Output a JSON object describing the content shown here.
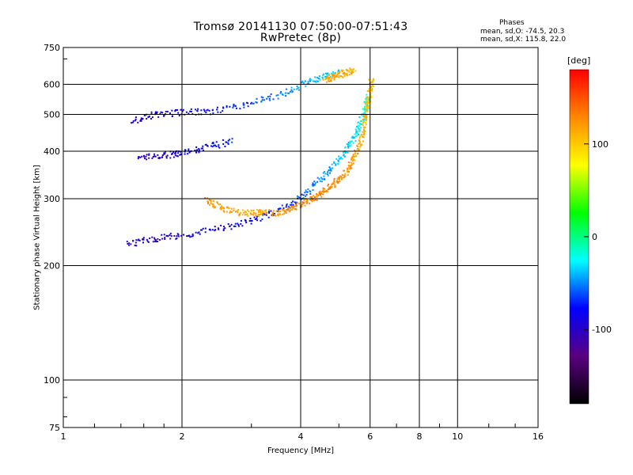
{
  "chart_data": {
    "type": "scatter",
    "title": "Tromsø 20141130 07:50:00-07:51:43",
    "subtitle": "RwPretec (8p)",
    "xlabel": "Frequency [MHz]",
    "ylabel": "Stationary phase Virtual Height [km]",
    "x_scale": "log",
    "y_scale": "log",
    "xlim": [
      1,
      16
    ],
    "ylim": [
      75,
      750
    ],
    "x_ticks": [
      1,
      2,
      4,
      6,
      8,
      10,
      16
    ],
    "y_ticks": [
      75,
      100,
      200,
      300,
      400,
      500,
      600,
      750
    ],
    "grid": true,
    "phase_box": {
      "title": "Phases",
      "line_o": "mean, sd,O: -74.5, 20.3",
      "line_x": "mean, sd,X: 115.8, 22.0"
    },
    "colorbar": {
      "label": "[deg]",
      "range": [
        -180,
        180
      ],
      "ticks": [
        100,
        0,
        -100
      ],
      "colors": [
        "#000000",
        "#5a0080",
        "#0000ff",
        "#00ffff",
        "#00ff00",
        "#ffff00",
        "#ff8800",
        "#ff0000"
      ]
    },
    "series": [
      {
        "name": "O",
        "traces": [
          {
            "x": [
              1.45,
              1.7,
              2.0,
              2.5,
              3.0,
              3.5,
              4.0,
              4.4,
              4.8,
              5.2,
              5.5,
              5.7,
              5.85,
              5.95
            ],
            "y": [
              228,
              235,
              240,
              250,
              262,
              278,
              300,
              330,
              360,
              400,
              440,
              480,
              520,
              560
            ],
            "phase": [
              -100,
              -100,
              -90,
              -85,
              -80,
              -72,
              -60,
              -50,
              -45,
              -35,
              -30,
              -25,
              -20,
              -15
            ]
          },
          {
            "x": [
              1.5,
              1.7,
              2.0,
              2.4,
              3.0,
              3.6,
              4.2,
              4.6,
              5.0
            ],
            "y": [
              480,
              500,
              505,
              510,
              535,
              565,
              610,
              630,
              645
            ],
            "phase": [
              -95,
              -90,
              -85,
              -75,
              -65,
              -50,
              -40,
              -35,
              -30
            ]
          },
          {
            "x": [
              1.55,
              1.8,
              2.0,
              2.3,
              2.7
            ],
            "y": [
              385,
              390,
              395,
              410,
              425
            ],
            "phase": [
              -100,
              -95,
              -90,
              -80,
              -70
            ]
          }
        ]
      },
      {
        "name": "X",
        "traces": [
          {
            "x": [
              3.4,
              3.7,
              4.0,
              4.3,
              4.6,
              4.9,
              5.2,
              5.45,
              5.65,
              5.8,
              5.9,
              6.0,
              6.05
            ],
            "y": [
              272,
              280,
              290,
              300,
              315,
              330,
              350,
              380,
              420,
              470,
              520,
              570,
              620
            ],
            "phase": [
              120,
              125,
              130,
              130,
              130,
              128,
              125,
              120,
              115,
              110,
              108,
              106,
              105
            ]
          },
          {
            "x": [
              2.3,
              2.5,
              2.8,
              3.1,
              3.3
            ],
            "y": [
              298,
              285,
              275,
              275,
              280
            ],
            "phase": [
              125,
              120,
              118,
              115,
              110
            ]
          },
          {
            "x": [
              4.6,
              4.9,
              5.2,
              5.5
            ],
            "y": [
              615,
              630,
              645,
              655
            ],
            "phase": [
              120,
              118,
              115,
              110
            ]
          }
        ]
      }
    ]
  }
}
